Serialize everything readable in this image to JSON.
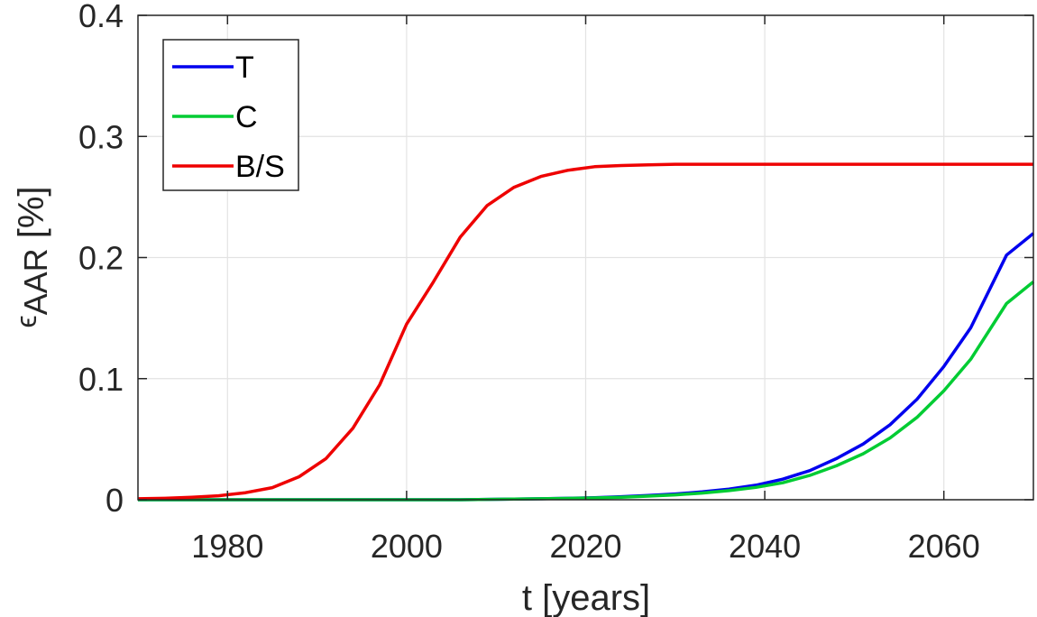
{
  "chart_data": {
    "type": "line",
    "xlabel": "t [years]",
    "ylabel_base": "ϵ",
    "ylabel_sub": "AAR",
    "ylabel_unit": " [%]",
    "xlim": [
      1970,
      2070
    ],
    "ylim": [
      0,
      0.4
    ],
    "xticks": [
      1980,
      2000,
      2020,
      2040,
      2060
    ],
    "yticks": [
      0,
      0.1,
      0.2,
      0.3,
      0.4
    ],
    "grid": true,
    "legend_position": "top-left",
    "x": [
      1970,
      1973,
      1976,
      1979,
      1982,
      1985,
      1988,
      1991,
      1994,
      1997,
      2000,
      2003,
      2006,
      2009,
      2012,
      2015,
      2018,
      2021,
      2024,
      2027,
      2030,
      2033,
      2036,
      2039,
      2042,
      2045,
      2048,
      2051,
      2054,
      2057,
      2060,
      2063,
      2067,
      2070
    ],
    "series": [
      {
        "name": "T",
        "color": "#0000ee",
        "values": [
          0,
          0,
          0,
          0,
          0,
          0,
          0,
          0,
          0,
          0,
          0,
          0,
          0,
          0.0003,
          0.0005,
          0.0008,
          0.0012,
          0.0017,
          0.0025,
          0.0035,
          0.0048,
          0.0065,
          0.0088,
          0.012,
          0.017,
          0.024,
          0.034,
          0.046,
          0.062,
          0.083,
          0.11,
          0.142,
          0.202,
          0.22
        ]
      },
      {
        "name": "C",
        "color": "#00cc33",
        "values": [
          0,
          0,
          0,
          0,
          0,
          0,
          0,
          0,
          0,
          0,
          0,
          0,
          0,
          0.0003,
          0.0005,
          0.0008,
          0.0011,
          0.0015,
          0.0021,
          0.003,
          0.004,
          0.0055,
          0.0075,
          0.0102,
          0.014,
          0.02,
          0.028,
          0.038,
          0.051,
          0.068,
          0.09,
          0.116,
          0.162,
          0.18
        ]
      },
      {
        "name": "B/S",
        "color": "#ee0000",
        "values": [
          0.0008,
          0.0012,
          0.002,
          0.0033,
          0.0058,
          0.01,
          0.019,
          0.034,
          0.059,
          0.095,
          0.145,
          0.18,
          0.217,
          0.243,
          0.258,
          0.267,
          0.272,
          0.275,
          0.276,
          0.2765,
          0.277,
          0.277,
          0.277,
          0.277,
          0.277,
          0.277,
          0.277,
          0.277,
          0.277,
          0.277,
          0.277,
          0.277,
          0.277,
          0.277
        ]
      }
    ]
  }
}
